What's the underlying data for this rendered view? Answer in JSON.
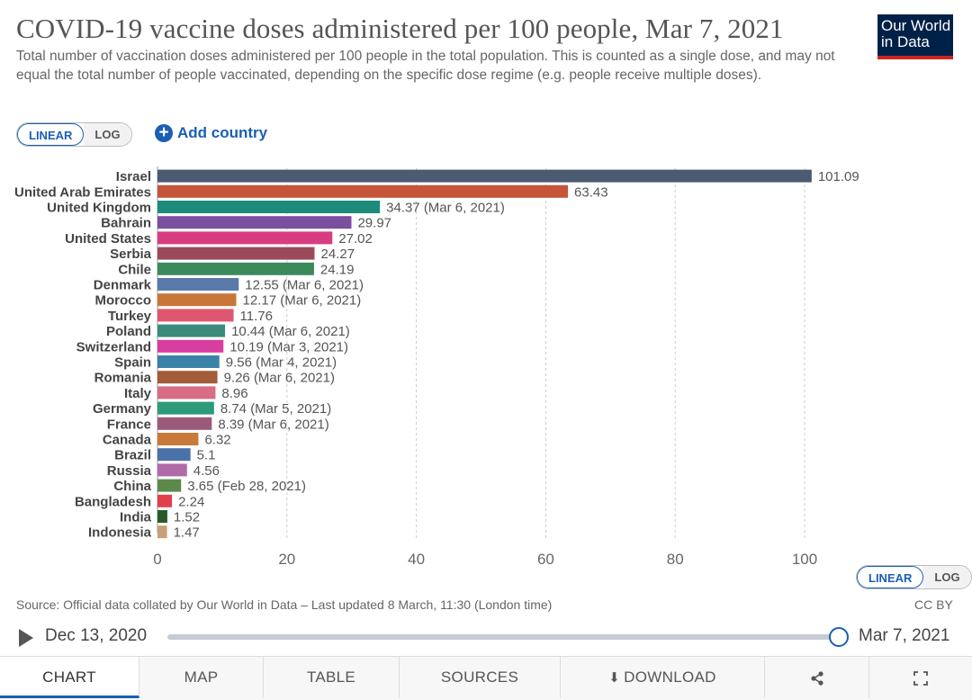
{
  "header": {
    "title": "COVID-19 vaccine doses administered per 100 people, Mar 7, 2021",
    "subtitle": "Total number of vaccination doses administered per 100 people in the total population. This is counted as a single dose, and may not equal the total number of people vaccinated, depending on the specific dose regime (e.g. people receive multiple doses).",
    "logo_line1": "Our World",
    "logo_line2": "in Data"
  },
  "controls": {
    "linear": "LINEAR",
    "log": "LOG",
    "add_country": "Add country"
  },
  "colors": {
    "accent": "#1a5fb4",
    "brand_dark": "#002147",
    "brand_red": "#ce261e"
  },
  "chart_data": {
    "type": "bar",
    "orientation": "horizontal",
    "title": "COVID-19 vaccine doses administered per 100 people, Mar 7, 2021",
    "xlim": [
      0,
      100
    ],
    "xticks": [
      0,
      20,
      40,
      60,
      80,
      100
    ],
    "grid": true,
    "bars": [
      {
        "country": "Israel",
        "value": 101.09,
        "label": "101.09",
        "color": "#4c5a72"
      },
      {
        "country": "United Arab Emirates",
        "value": 63.43,
        "label": "63.43",
        "color": "#c4543a"
      },
      {
        "country": "United Kingdom",
        "value": 34.37,
        "label": "34.37 (Mar 6, 2021)",
        "color": "#1e8a7a"
      },
      {
        "country": "Bahrain",
        "value": 29.97,
        "label": "29.97",
        "color": "#7b4fa0"
      },
      {
        "country": "United States",
        "value": 27.02,
        "label": "27.02",
        "color": "#d83d82"
      },
      {
        "country": "Serbia",
        "value": 24.27,
        "label": "24.27",
        "color": "#9b4a5c"
      },
      {
        "country": "Chile",
        "value": 24.19,
        "label": "24.19",
        "color": "#3a8a5c"
      },
      {
        "country": "Denmark",
        "value": 12.55,
        "label": "12.55 (Mar 6, 2021)",
        "color": "#5b79aa"
      },
      {
        "country": "Morocco",
        "value": 12.17,
        "label": "12.17 (Mar 6, 2021)",
        "color": "#c9763a"
      },
      {
        "country": "Turkey",
        "value": 11.76,
        "label": "11.76",
        "color": "#df5670"
      },
      {
        "country": "Poland",
        "value": 10.44,
        "label": "10.44 (Mar 6, 2021)",
        "color": "#3c8a7c"
      },
      {
        "country": "Switzerland",
        "value": 10.19,
        "label": "10.19 (Mar 3, 2021)",
        "color": "#d83da0"
      },
      {
        "country": "Spain",
        "value": 9.56,
        "label": "9.56 (Mar 4, 2021)",
        "color": "#3a82a8"
      },
      {
        "country": "Romania",
        "value": 9.26,
        "label": "9.26 (Mar 6, 2021)",
        "color": "#a35c3a"
      },
      {
        "country": "Italy",
        "value": 8.96,
        "label": "8.96",
        "color": "#d86c84"
      },
      {
        "country": "Germany",
        "value": 8.74,
        "label": "8.74 (Mar 5, 2021)",
        "color": "#2e9a7c"
      },
      {
        "country": "France",
        "value": 8.39,
        "label": "8.39 (Mar 6, 2021)",
        "color": "#9b5a7a"
      },
      {
        "country": "Canada",
        "value": 6.32,
        "label": "6.32",
        "color": "#c97a3a"
      },
      {
        "country": "Brazil",
        "value": 5.1,
        "label": "5.1",
        "color": "#4a72a8"
      },
      {
        "country": "Russia",
        "value": 4.56,
        "label": "4.56",
        "color": "#b06aa8"
      },
      {
        "country": "China",
        "value": 3.65,
        "label": "3.65 (Feb 28, 2021)",
        "color": "#5c8a4a"
      },
      {
        "country": "Bangladesh",
        "value": 2.24,
        "label": "2.24",
        "color": "#e0404c"
      },
      {
        "country": "India",
        "value": 1.52,
        "label": "1.52",
        "color": "#2a5a2a"
      },
      {
        "country": "Indonesia",
        "value": 1.47,
        "label": "1.47",
        "color": "#c9a078"
      }
    ]
  },
  "footer": {
    "source": "Source: Official data collated by Our World in Data – Last updated 8 March, 11:30 (London time)",
    "license": "CC BY"
  },
  "timeline": {
    "start": "Dec 13, 2020",
    "end": "Mar 7, 2021"
  },
  "tabs": {
    "chart": "CHART",
    "map": "MAP",
    "table": "TABLE",
    "sources": "SOURCES",
    "download": "DOWNLOAD"
  }
}
